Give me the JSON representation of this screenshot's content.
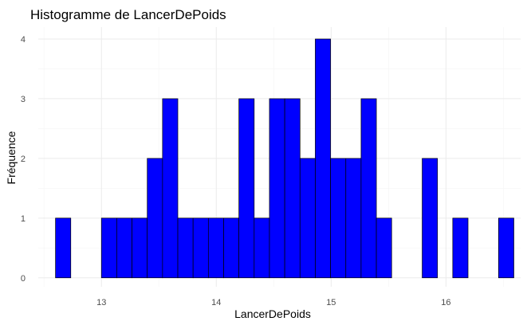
{
  "chart_data": {
    "type": "bar",
    "title": "Histogramme de LancerDePoids",
    "xlabel": "LancerDePoids",
    "ylabel": "Fréquence",
    "bin_width": 0.133,
    "bin_start": 12.6,
    "bins": [
      {
        "x_start": 12.6,
        "count": 1
      },
      {
        "x_start": 12.733,
        "count": 0
      },
      {
        "x_start": 12.866,
        "count": 0
      },
      {
        "x_start": 13.0,
        "count": 1
      },
      {
        "x_start": 13.133,
        "count": 1
      },
      {
        "x_start": 13.266,
        "count": 1
      },
      {
        "x_start": 13.399,
        "count": 2
      },
      {
        "x_start": 13.532,
        "count": 3
      },
      {
        "x_start": 13.665,
        "count": 1
      },
      {
        "x_start": 13.798,
        "count": 1
      },
      {
        "x_start": 13.931,
        "count": 1
      },
      {
        "x_start": 14.064,
        "count": 1
      },
      {
        "x_start": 14.197,
        "count": 3
      },
      {
        "x_start": 14.33,
        "count": 1
      },
      {
        "x_start": 14.463,
        "count": 3
      },
      {
        "x_start": 14.596,
        "count": 3
      },
      {
        "x_start": 14.729,
        "count": 2
      },
      {
        "x_start": 14.862,
        "count": 4
      },
      {
        "x_start": 14.995,
        "count": 2
      },
      {
        "x_start": 15.128,
        "count": 2
      },
      {
        "x_start": 15.261,
        "count": 3
      },
      {
        "x_start": 15.394,
        "count": 1
      },
      {
        "x_start": 15.527,
        "count": 0
      },
      {
        "x_start": 15.66,
        "count": 0
      },
      {
        "x_start": 15.793,
        "count": 2
      },
      {
        "x_start": 15.926,
        "count": 0
      },
      {
        "x_start": 16.059,
        "count": 1
      },
      {
        "x_start": 16.192,
        "count": 0
      },
      {
        "x_start": 16.325,
        "count": 0
      },
      {
        "x_start": 16.458,
        "count": 1
      }
    ],
    "xlim": [
      12.45,
      16.65
    ],
    "ylim": [
      -0.15,
      4.2
    ],
    "x_ticks": [
      13,
      14,
      15,
      16
    ],
    "y_ticks": [
      0,
      1,
      2,
      3,
      4
    ],
    "bar_fill": "#0000ff",
    "bar_stroke": "#000000",
    "grid": true,
    "legend": "none"
  }
}
